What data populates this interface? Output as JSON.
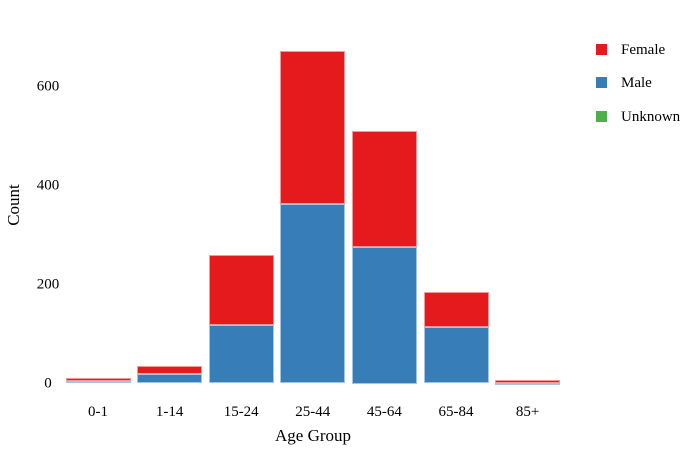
{
  "chart_data": {
    "type": "bar",
    "stacked": true,
    "title": "",
    "xlabel": "Age Group",
    "ylabel": "Count",
    "categories": [
      "0-1",
      "1-14",
      "15-24",
      "25-44",
      "45-64",
      "65-84",
      "85+"
    ],
    "series": [
      {
        "name": "Male",
        "color": "#377EB8",
        "values": [
          6,
          19,
          118,
          362,
          275,
          114,
          1
        ]
      },
      {
        "name": "Female",
        "color": "#E41A1C",
        "values": [
          5,
          17,
          141,
          310,
          235,
          71,
          6
        ]
      },
      {
        "name": "Unknown",
        "color": "#4DAF4A",
        "values": [
          0,
          0,
          0,
          0,
          0,
          0,
          0
        ]
      }
    ],
    "yticks": [
      0,
      200,
      400,
      600
    ],
    "ylim": [
      0,
      700
    ],
    "grid": false,
    "legend_position": "right",
    "legend": [
      {
        "label": "Female",
        "color": "#E41A1C"
      },
      {
        "label": "Male",
        "color": "#377EB8"
      },
      {
        "label": "Unknown",
        "color": "#4DAF4A"
      }
    ],
    "colors": {
      "background": "#ffffff",
      "text": "#000000"
    }
  }
}
